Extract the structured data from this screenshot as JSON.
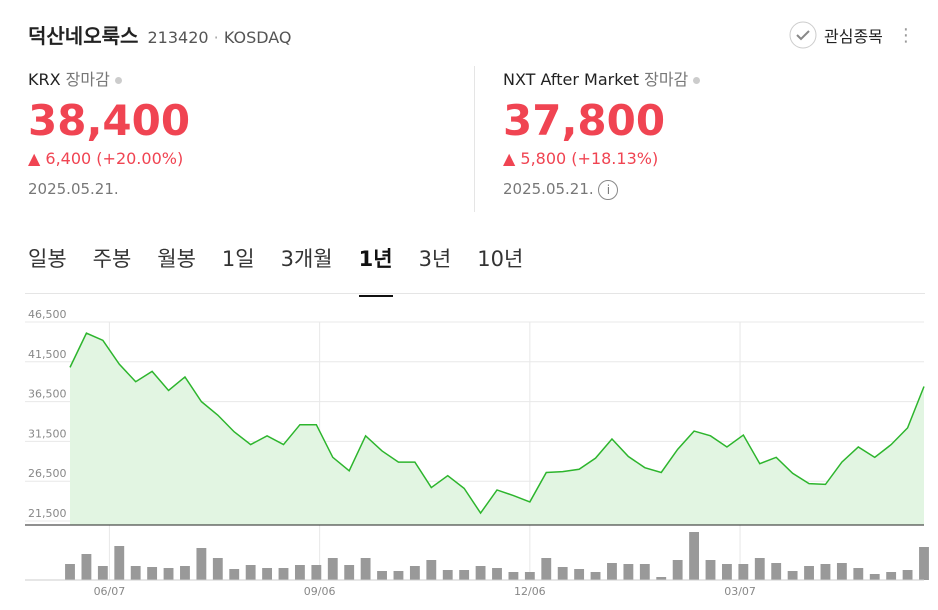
{
  "header": {
    "title": "덕산네오룩스",
    "code": "213420",
    "market": "KOSDAQ",
    "watch": "관심종목"
  },
  "krx": {
    "label": "KRX",
    "status": "장마감",
    "price": "38,400",
    "change": "6,400",
    "rate": "(+20.00%)",
    "date": "2025.05.21."
  },
  "nxt": {
    "label": "NXT After Market",
    "status": "장마감",
    "price": "37,800",
    "change": "5,800",
    "rate": "(+18.13%)",
    "date": "2025.05.21."
  },
  "tabs": {
    "items": [
      "일봉",
      "주봉",
      "월봉",
      "1일",
      "3개월",
      "1년",
      "3년",
      "10년"
    ],
    "active": 5
  },
  "chart": {
    "type": "line",
    "color": "#2db52d",
    "fill": "#e2f5e2",
    "volume_color": "#999999",
    "values": [
      40800,
      45100,
      44200,
      41200,
      39000,
      40300,
      37900,
      39600,
      36500,
      34800,
      32700,
      31100,
      32200,
      31100,
      33600,
      33600,
      29500,
      27800,
      32200,
      30300,
      28900,
      28900,
      25700,
      27200,
      25600,
      22500,
      25400,
      24700,
      23900,
      27600,
      27700,
      28000,
      29400,
      31800,
      29600,
      28200,
      27600,
      30500,
      32800,
      32200,
      30800,
      32300,
      28700,
      29500,
      27500,
      26200,
      26100,
      28900,
      30800,
      29500,
      31100,
      33200,
      38400
    ],
    "volume": [
      16,
      26,
      14,
      34,
      14,
      13,
      12,
      14,
      32,
      22,
      11,
      15,
      12,
      12,
      15,
      15,
      22,
      15,
      22,
      9,
      9,
      14,
      20,
      10,
      10,
      14,
      12,
      8,
      8,
      22,
      13,
      11,
      8,
      17,
      16,
      16,
      3,
      20,
      48,
      20,
      16,
      16,
      22,
      17,
      9,
      14,
      16,
      17,
      12,
      6,
      8,
      10,
      33
    ],
    "volume_ylim": [
      0,
      50
    ],
    "xlim": [
      0,
      52
    ],
    "xticks": [
      {
        "value": 2.4,
        "label": "06/07"
      },
      {
        "value": 15.2,
        "label": "09/06"
      },
      {
        "value": 28,
        "label": "12/06"
      },
      {
        "value": 40.8,
        "label": "03/07"
      }
    ],
    "ylim": [
      21000,
      46500
    ],
    "yticks": [
      {
        "value": 46500,
        "label": "46,500"
      },
      {
        "value": 41500,
        "label": "41,500"
      },
      {
        "value": 36500,
        "label": "36,500"
      },
      {
        "value": 31500,
        "label": "31,500"
      },
      {
        "value": 26500,
        "label": "26,500"
      },
      {
        "value": 21500,
        "label": "21,500"
      }
    ],
    "grid": true
  }
}
